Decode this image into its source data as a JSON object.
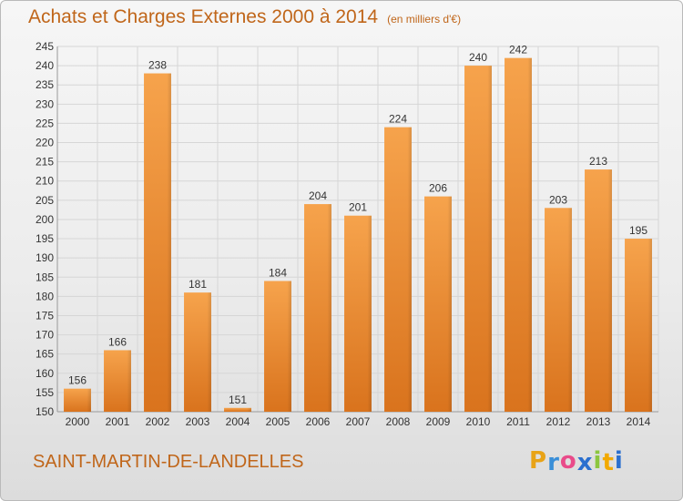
{
  "title": "Achats et Charges Externes 2000 à 2014",
  "subtitle": "(en milliers d'€)",
  "commune": "SAINT-MARTIN-DE-LANDELLES",
  "logo": {
    "letters": [
      "P",
      "r",
      "o",
      "x",
      "i",
      "t",
      "i"
    ],
    "colors": [
      "#e8a317",
      "#3a8fd8",
      "#e94b8a",
      "#2a6fcf",
      "#8cc63f",
      "#f2a900",
      "#2a6fcf"
    ]
  },
  "colors": {
    "accent": "#c0661a",
    "bar_top": "#f6a34c",
    "bar_bottom": "#d9731d",
    "grid": "#d6d6d6"
  },
  "chart_data": {
    "type": "bar",
    "title": "Achats et Charges Externes 2000 à 2014",
    "subtitle": "(en milliers d'€)",
    "categories": [
      "2000",
      "2001",
      "2002",
      "2003",
      "2004",
      "2005",
      "2006",
      "2007",
      "2008",
      "2009",
      "2010",
      "2011",
      "2012",
      "2013",
      "2014"
    ],
    "values": [
      156,
      166,
      238,
      181,
      151,
      184,
      204,
      201,
      224,
      206,
      240,
      242,
      203,
      213,
      195
    ],
    "ylim": [
      150,
      245
    ],
    "yticks": [
      150,
      155,
      160,
      165,
      170,
      175,
      180,
      185,
      190,
      195,
      200,
      205,
      210,
      215,
      220,
      225,
      230,
      235,
      240,
      245
    ],
    "grid": true,
    "data_labels": true,
    "xlabel": "",
    "ylabel": ""
  }
}
